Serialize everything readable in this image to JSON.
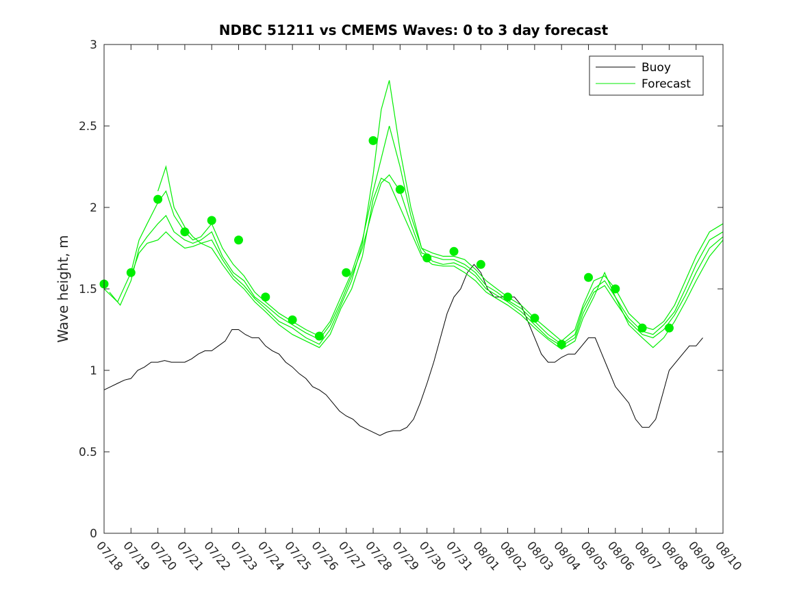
{
  "chart_data": {
    "type": "line",
    "title": "NDBC 51211 vs CMEMS Waves: 0 to 3 day forecast",
    "ylabel": "Wave height, m",
    "xlabel": "",
    "ylim": [
      0,
      3
    ],
    "yticks": [
      "0",
      "0.5",
      "1",
      "1.5",
      "2",
      "2.5",
      "3"
    ],
    "xlim": [
      0,
      23
    ],
    "xtick_labels": [
      "07/18",
      "07/19",
      "07/20",
      "07/21",
      "07/22",
      "07/23",
      "07/24",
      "07/25",
      "07/26",
      "07/27",
      "07/28",
      "07/29",
      "07/30",
      "07/31",
      "08/01",
      "08/02",
      "08/03",
      "08/04",
      "08/05",
      "08/06",
      "08/07",
      "08/08",
      "08/09",
      "08/10"
    ],
    "legend": {
      "location": "top-right",
      "entries": [
        "Buoy",
        "Forecast"
      ]
    },
    "colors": {
      "buoy": "#000000",
      "forecast": "#00ee00"
    },
    "series": [
      {
        "name": "Buoy",
        "x": [
          0,
          0.25,
          0.5,
          0.75,
          1,
          1.25,
          1.5,
          1.75,
          2,
          2.25,
          2.5,
          2.75,
          3,
          3.25,
          3.5,
          3.75,
          4,
          4.25,
          4.5,
          4.75,
          5,
          5.25,
          5.5,
          5.75,
          6,
          6.25,
          6.5,
          6.75,
          7,
          7.25,
          7.5,
          7.75,
          8,
          8.25,
          8.5,
          8.75,
          9,
          9.25,
          9.5,
          9.75,
          10,
          10.25,
          10.5,
          10.75,
          11,
          11.25,
          11.5,
          11.75,
          12,
          12.25,
          12.5,
          12.75,
          13,
          13.25,
          13.5,
          13.75,
          14,
          14.25,
          14.5,
          14.75,
          15,
          15.25,
          15.5,
          15.75,
          16,
          16.25,
          16.5,
          16.75,
          17,
          17.25,
          17.5,
          17.75,
          18,
          18.25,
          18.5,
          18.75,
          19,
          19.25,
          19.5,
          19.75,
          20,
          20.25,
          20.5,
          20.75,
          21,
          21.25,
          21.5,
          21.75,
          22,
          22.25
        ],
        "y": [
          0.88,
          0.9,
          0.92,
          0.94,
          0.95,
          1.0,
          1.02,
          1.05,
          1.05,
          1.06,
          1.05,
          1.05,
          1.05,
          1.07,
          1.1,
          1.12,
          1.12,
          1.15,
          1.18,
          1.25,
          1.25,
          1.22,
          1.2,
          1.2,
          1.15,
          1.12,
          1.1,
          1.05,
          1.02,
          0.98,
          0.95,
          0.9,
          0.88,
          0.85,
          0.8,
          0.75,
          0.72,
          0.7,
          0.66,
          0.64,
          0.62,
          0.6,
          0.62,
          0.63,
          0.63,
          0.65,
          0.7,
          0.8,
          0.92,
          1.05,
          1.2,
          1.35,
          1.45,
          1.5,
          1.6,
          1.65,
          1.6,
          1.5,
          1.45,
          1.45,
          1.45,
          1.45,
          1.4,
          1.3,
          1.2,
          1.1,
          1.05,
          1.05,
          1.08,
          1.1,
          1.1,
          1.15,
          1.2,
          1.2,
          1.1,
          1.0,
          0.9,
          0.85,
          0.8,
          0.7,
          0.65,
          0.65,
          0.7,
          0.85,
          1.0,
          1.05,
          1.1,
          1.15,
          1.15,
          1.2
        ]
      },
      {
        "name": "Forecast",
        "x": [
          0,
          1,
          2,
          3,
          4,
          5,
          6,
          7,
          8,
          9,
          10,
          11,
          12,
          13,
          14,
          15,
          16,
          17,
          18,
          19,
          20,
          21
        ],
        "y": [
          1.53,
          1.6,
          2.05,
          1.85,
          1.92,
          1.8,
          1.45,
          1.31,
          1.21,
          1.6,
          2.41,
          2.11,
          1.69,
          1.73,
          1.65,
          1.45,
          1.32,
          1.16,
          1.57,
          1.5,
          1.26,
          1.26
        ]
      }
    ],
    "forecast_traces": [
      {
        "x": [
          0,
          0.5,
          1,
          1.3,
          1.6,
          2,
          2.3,
          2.6,
          3,
          3.3,
          3.6,
          4,
          4.4,
          4.8,
          5.2,
          5.6,
          6,
          6.5,
          7,
          7.5,
          8,
          8.4,
          8.8,
          9.2,
          9.6,
          10,
          10.3,
          10.6,
          11,
          11.4,
          11.8,
          12.2,
          12.6,
          13,
          13.4,
          13.8,
          14.2,
          14.6,
          15,
          15.5,
          16,
          16.5,
          17,
          17.5,
          17.8,
          18.2,
          18.6,
          19,
          19.5,
          20,
          20.4,
          20.8,
          21.2,
          21.6,
          22,
          22.5,
          23
        ],
        "y": [
          1.5,
          1.42,
          1.6,
          1.8,
          1.9,
          2.03,
          2.1,
          1.95,
          1.85,
          1.8,
          1.82,
          1.9,
          1.75,
          1.65,
          1.58,
          1.48,
          1.42,
          1.35,
          1.3,
          1.25,
          1.21,
          1.3,
          1.45,
          1.6,
          1.8,
          2.1,
          2.3,
          2.5,
          2.25,
          1.95,
          1.75,
          1.72,
          1.7,
          1.7,
          1.68,
          1.62,
          1.55,
          1.5,
          1.45,
          1.4,
          1.32,
          1.25,
          1.18,
          1.25,
          1.4,
          1.55,
          1.58,
          1.5,
          1.35,
          1.27,
          1.25,
          1.3,
          1.4,
          1.55,
          1.7,
          1.85,
          1.9
        ]
      },
      {
        "x": [
          0.2,
          0.6,
          1,
          1.3,
          1.6,
          2,
          2.3,
          2.6,
          3,
          3.3,
          3.6,
          4,
          4.4,
          4.8,
          5.2,
          5.6,
          6,
          6.5,
          7,
          7.5,
          8,
          8.4,
          8.8,
          9.2,
          9.6,
          10,
          10.3,
          10.6,
          11,
          11.4,
          11.8,
          12.2,
          12.6,
          13,
          13.4,
          13.8,
          14.2,
          14.6,
          15,
          15.5,
          16,
          16.5,
          17,
          17.5,
          17.8,
          18.2,
          18.6,
          19,
          19.5,
          20,
          20.4,
          20.8,
          21.2,
          21.6,
          22,
          22.5,
          23
        ],
        "y": [
          1.48,
          1.4,
          1.55,
          1.75,
          1.82,
          1.9,
          1.95,
          1.85,
          1.8,
          1.78,
          1.8,
          1.85,
          1.7,
          1.6,
          1.55,
          1.45,
          1.4,
          1.33,
          1.28,
          1.23,
          1.19,
          1.28,
          1.42,
          1.58,
          1.75,
          2.0,
          2.15,
          2.2,
          2.1,
          1.9,
          1.72,
          1.7,
          1.68,
          1.68,
          1.65,
          1.6,
          1.52,
          1.48,
          1.43,
          1.38,
          1.3,
          1.22,
          1.16,
          1.22,
          1.38,
          1.5,
          1.55,
          1.45,
          1.32,
          1.24,
          1.22,
          1.28,
          1.36,
          1.5,
          1.65,
          1.8,
          1.85
        ]
      },
      {
        "x": [
          1,
          1.3,
          1.6,
          2,
          2.3,
          2.6,
          3,
          3.3,
          3.6,
          4,
          4.4,
          4.8,
          5.2,
          5.6,
          6,
          6.5,
          7,
          7.5,
          8,
          8.4,
          8.8,
          9.2,
          9.6,
          10,
          10.3,
          10.6,
          11,
          11.4,
          11.8,
          12.2,
          12.6,
          13,
          13.4,
          13.8,
          14.2,
          14.6,
          15,
          15.5,
          16,
          16.5,
          17,
          17.5,
          17.8,
          18.2,
          18.6,
          19,
          19.5,
          20,
          20.4,
          20.8,
          21.2,
          21.6,
          22,
          22.5,
          23
        ],
        "y": [
          1.58,
          1.72,
          1.78,
          1.8,
          1.85,
          1.8,
          1.75,
          1.76,
          1.78,
          1.8,
          1.68,
          1.58,
          1.52,
          1.44,
          1.38,
          1.3,
          1.26,
          1.2,
          1.16,
          1.25,
          1.4,
          1.55,
          1.78,
          2.2,
          2.6,
          2.78,
          2.35,
          2.0,
          1.75,
          1.67,
          1.65,
          1.66,
          1.63,
          1.58,
          1.5,
          1.46,
          1.42,
          1.36,
          1.28,
          1.2,
          1.15,
          1.2,
          1.35,
          1.48,
          1.52,
          1.42,
          1.3,
          1.22,
          1.2,
          1.25,
          1.34,
          1.46,
          1.6,
          1.75,
          1.82
        ]
      },
      {
        "x": [
          2,
          2.3,
          2.6,
          3,
          3.3,
          3.6,
          4,
          4.4,
          4.8,
          5.2,
          5.6,
          6,
          6.5,
          7,
          7.5,
          8,
          8.4,
          8.8,
          9.2,
          9.6,
          10,
          10.3,
          10.6,
          11,
          11.4,
          11.8,
          12.2,
          12.6,
          13,
          13.4,
          13.8,
          14.2,
          14.6,
          15,
          15.5,
          16,
          16.5,
          17,
          17.5,
          17.8,
          18.2,
          18.6,
          19,
          19.5,
          20,
          20.4,
          20.8,
          21.2,
          21.6,
          22,
          22.5,
          23
        ],
        "y": [
          2.1,
          2.25,
          2.0,
          1.88,
          1.82,
          1.78,
          1.75,
          1.65,
          1.56,
          1.5,
          1.42,
          1.36,
          1.28,
          1.22,
          1.18,
          1.14,
          1.22,
          1.38,
          1.5,
          1.7,
          2.05,
          2.18,
          2.15,
          2.0,
          1.85,
          1.7,
          1.65,
          1.64,
          1.64,
          1.6,
          1.55,
          1.48,
          1.44,
          1.4,
          1.34,
          1.26,
          1.19,
          1.13,
          1.18,
          1.32,
          1.45,
          1.6,
          1.45,
          1.28,
          1.2,
          1.14,
          1.2,
          1.3,
          1.42,
          1.55,
          1.7,
          1.8
        ]
      }
    ]
  }
}
